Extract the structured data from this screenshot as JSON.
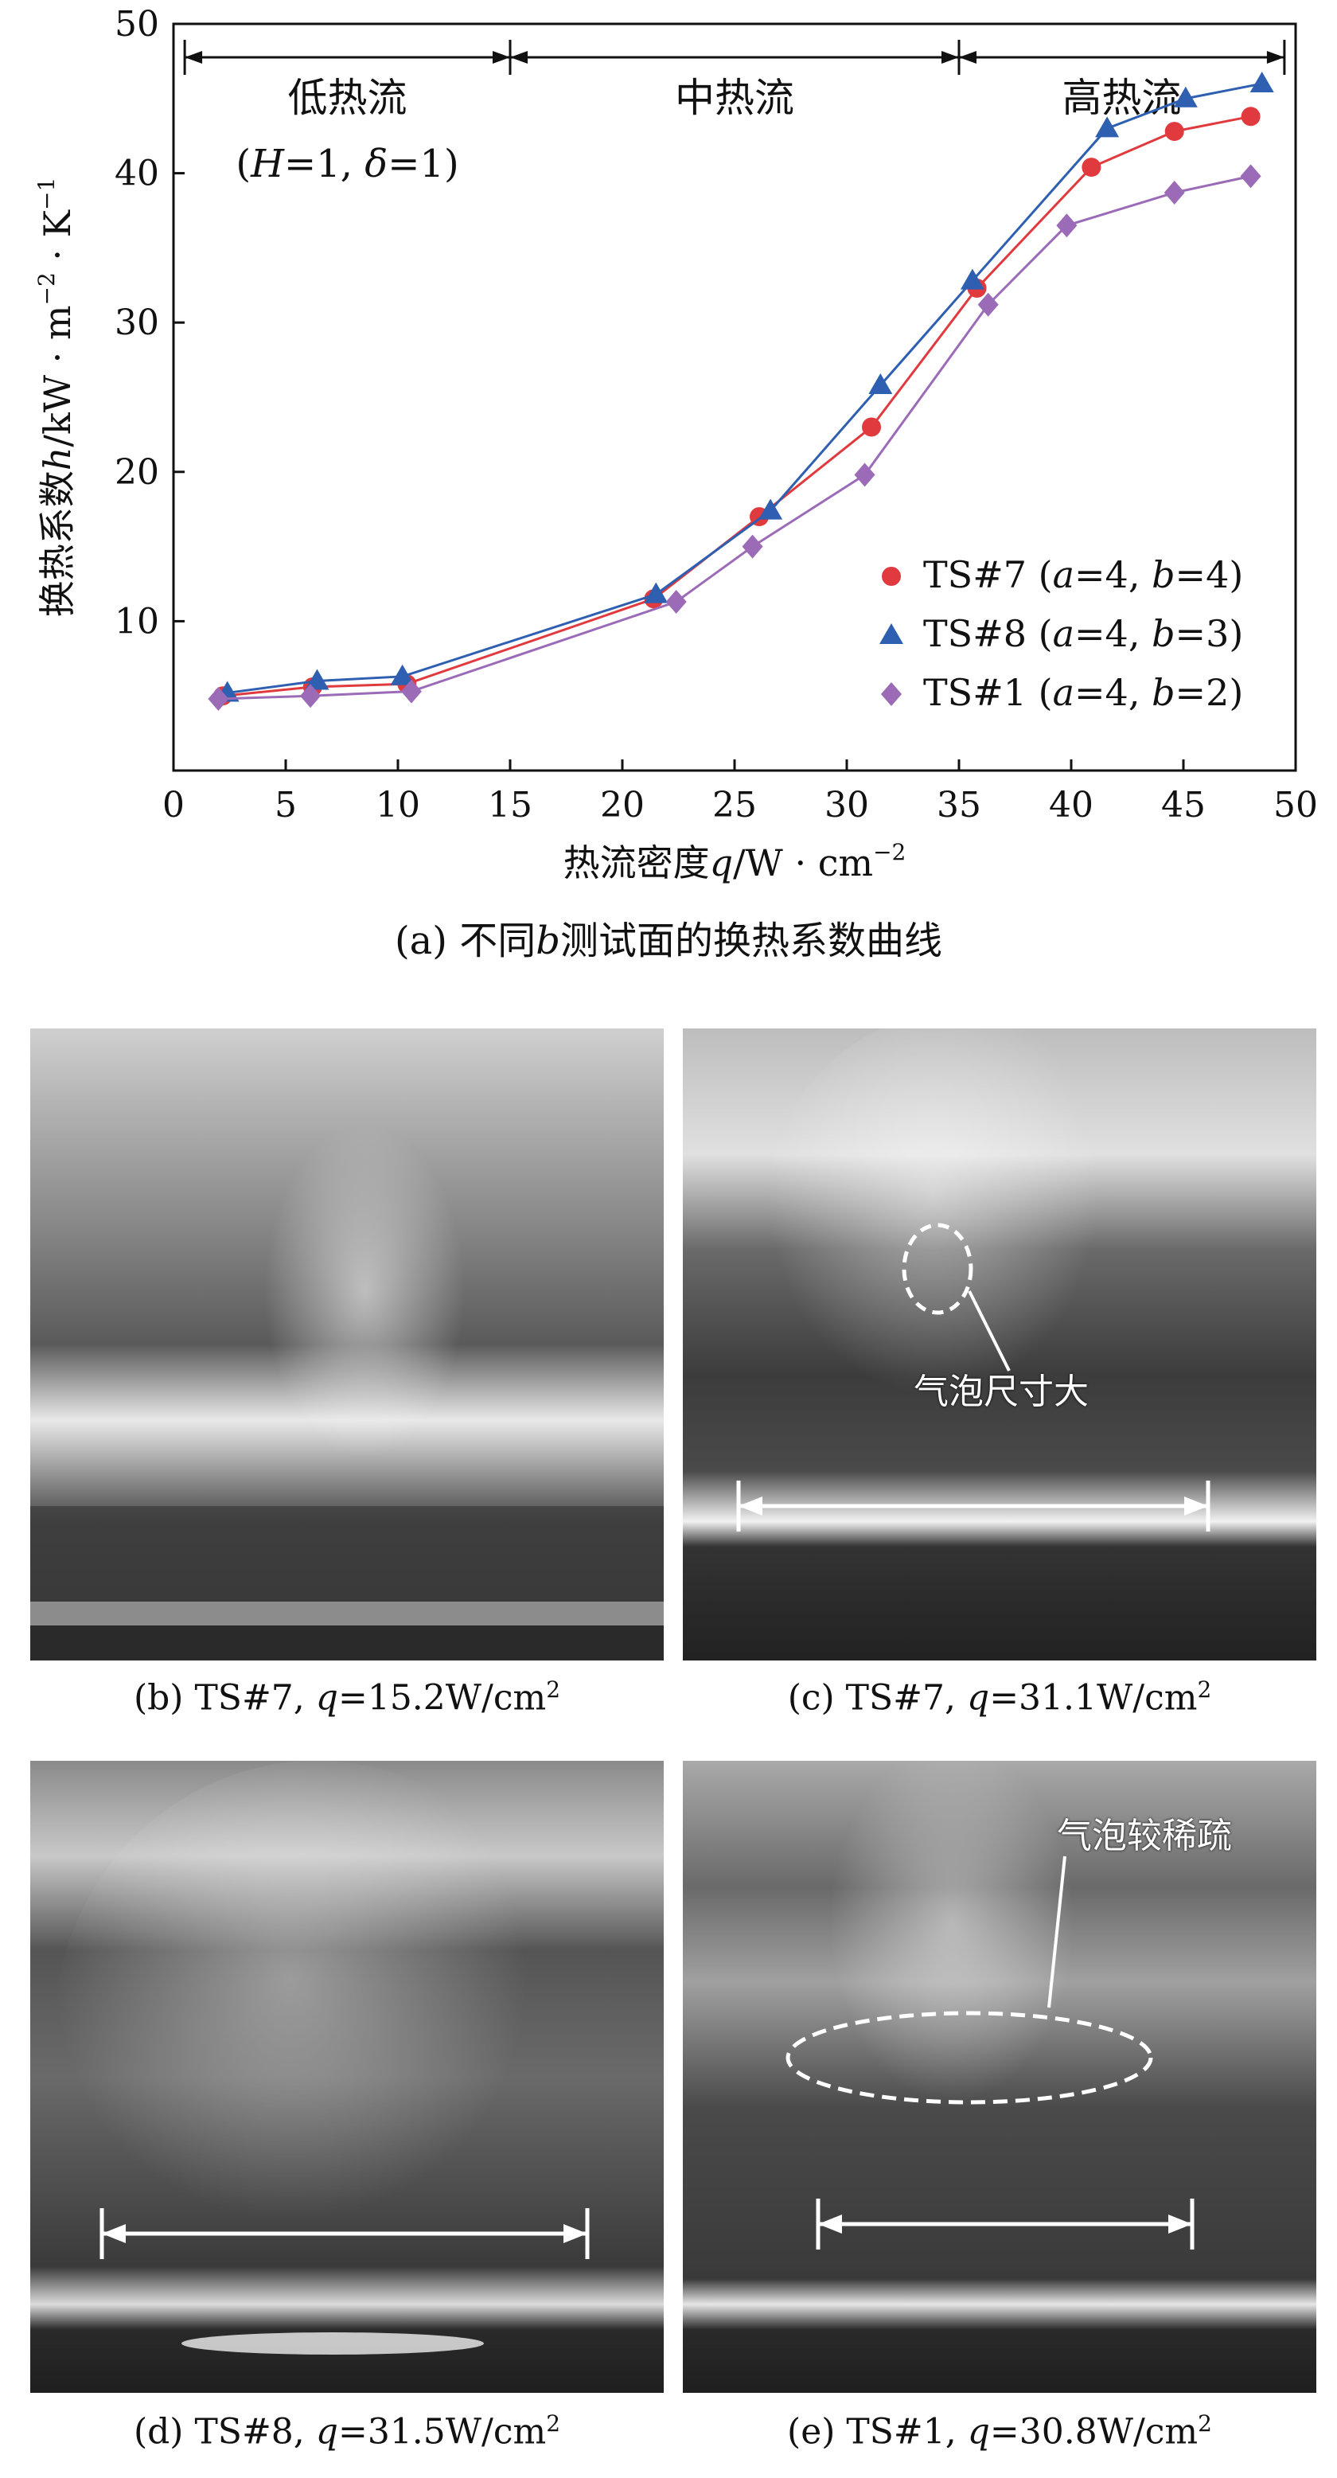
{
  "chart_data": {
    "type": "line",
    "xlabel_prefix": "热流密度",
    "xlabel_var": "q",
    "xlabel_unit": "/W · cm",
    "xlabel_exp": "−2",
    "ylabel_prefix": "换热系数",
    "ylabel_var": "h",
    "ylabel_unit": "/kW · m",
    "ylabel_exp1": "−2",
    "ylabel_mid": " · K",
    "ylabel_exp2": "−1",
    "xlim": [
      0,
      50
    ],
    "ylim": [
      0,
      50
    ],
    "xticks": [
      "0",
      "5",
      "10",
      "15",
      "20",
      "25",
      "30",
      "35",
      "40",
      "45",
      "50"
    ],
    "yticks": [
      "10",
      "20",
      "30",
      "40",
      "50"
    ],
    "regions": [
      {
        "label": "低热流",
        "x_start": 0.5,
        "x_end": 15
      },
      {
        "label": "中热流",
        "x_start": 15,
        "x_end": 35
      },
      {
        "label": "高热流",
        "x_start": 35,
        "x_end": 49.5
      }
    ],
    "region_note": {
      "prefix": "(",
      "H": "H",
      "eq1": "=1, ",
      "delta": "δ",
      "eq2": "=1)"
    },
    "legend_position": "bottom-right",
    "series": [
      {
        "name_pre": "TS#7 (",
        "a": "a",
        "mid": "=4, ",
        "b": "b",
        "post": "=4)",
        "marker": "circle",
        "color": "#e03a3f",
        "x": [
          2.2,
          6.2,
          10.4,
          21.4,
          26.1,
          31.1,
          35.8,
          40.9,
          44.6,
          48.0
        ],
        "y": [
          5.0,
          5.6,
          5.8,
          11.5,
          17.0,
          23.0,
          32.3,
          40.4,
          42.8,
          43.8
        ]
      },
      {
        "name_pre": "TS#8 (",
        "a": "a",
        "mid": "=4, ",
        "b": "b",
        "post": "=3)",
        "marker": "triangle",
        "color": "#2e5fb0",
        "x": [
          2.4,
          6.4,
          10.2,
          21.5,
          26.6,
          31.5,
          35.6,
          41.6,
          45.1,
          48.5
        ],
        "y": [
          5.2,
          6.0,
          6.3,
          11.8,
          17.4,
          25.8,
          32.8,
          43.0,
          45.0,
          46.0
        ]
      },
      {
        "name_pre": "TS#1 (",
        "a": "a",
        "mid": "=4, ",
        "b": "b",
        "post": "=2)",
        "marker": "diamond",
        "color": "#9b6bb8",
        "x": [
          2.0,
          6.1,
          10.6,
          22.4,
          25.8,
          30.8,
          36.3,
          39.8,
          44.6,
          48.0
        ],
        "y": [
          4.8,
          5.0,
          5.3,
          11.3,
          15.0,
          19.8,
          31.2,
          36.5,
          38.7,
          39.8
        ]
      }
    ]
  },
  "captions": {
    "a": {
      "prefix": "(a) 不同",
      "var": "b",
      "suffix": "测试面的换热系数曲线"
    },
    "b": {
      "prefix": "(b) TS#7, ",
      "var": "q",
      "value": "=15.2W/cm",
      "exp": "2"
    },
    "c": {
      "prefix": "(c) TS#7, ",
      "var": "q",
      "value": "=31.1W/cm",
      "exp": "2"
    },
    "d": {
      "prefix": "(d) TS#8, ",
      "var": "q",
      "value": "=31.5W/cm",
      "exp": "2"
    },
    "e": {
      "prefix": "(e) TS#1, ",
      "var": "q",
      "value": "=30.8W/cm",
      "exp": "2"
    }
  },
  "photo_annotations": {
    "c": "气泡尺寸大",
    "e": "气泡较稀疏"
  },
  "colors": {
    "axis": "#111111",
    "photo_dark": "#2a2a2a",
    "photo_light": "#d8d8d8"
  }
}
